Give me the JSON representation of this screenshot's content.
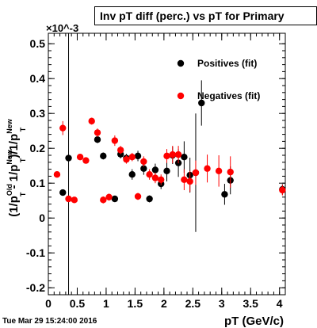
{
  "title": "Inv pT diff (perc.) vs pT for Primary",
  "timestamp": "Tue Mar 29 15:24:00 2016",
  "chart_data": {
    "type": "scatter",
    "xlabel": "pT (GeV/c)",
    "ylabel": "(1/p_T^Old - 1/p_T^New)/1/p_T^New",
    "y_multiplier": "×10^-3",
    "xlim": [
      0,
      4.1
    ],
    "ylim": [
      -0.22,
      0.53
    ],
    "x_ticks": [
      "0",
      "0.5",
      "1",
      "1.5",
      "2",
      "2.5",
      "3",
      "3.5",
      "4"
    ],
    "y_ticks": [
      "-0.2",
      "-0.1",
      "0",
      "0.1",
      "0.2",
      "0.3",
      "0.4",
      "0.5"
    ],
    "legend_position": "top-right",
    "grid": false,
    "series": [
      {
        "name": "Positives (fit)",
        "color": "#000000",
        "points": [
          {
            "x": 0.25,
            "y": 0.073,
            "err": 0.008
          },
          {
            "x": 0.35,
            "y": 0.172,
            "err": 0.49
          },
          {
            "x": 0.85,
            "y": 0.225,
            "err": 0.01
          },
          {
            "x": 0.95,
            "y": 0.178,
            "err": 0.01
          },
          {
            "x": 1.15,
            "y": 0.055,
            "err": 0.008
          },
          {
            "x": 1.25,
            "y": 0.183,
            "err": 0.012
          },
          {
            "x": 1.35,
            "y": 0.172,
            "err": 0.012
          },
          {
            "x": 1.45,
            "y": 0.125,
            "err": 0.015
          },
          {
            "x": 1.55,
            "y": 0.178,
            "err": 0.015
          },
          {
            "x": 1.65,
            "y": 0.142,
            "err": 0.018
          },
          {
            "x": 1.75,
            "y": 0.055,
            "err": 0.01
          },
          {
            "x": 1.85,
            "y": 0.138,
            "err": 0.018
          },
          {
            "x": 1.95,
            "y": 0.098,
            "err": 0.015
          },
          {
            "x": 2.05,
            "y": 0.135,
            "err": 0.03
          },
          {
            "x": 2.15,
            "y": 0.18,
            "err": 0.025
          },
          {
            "x": 2.25,
            "y": 0.158,
            "err": 0.04
          },
          {
            "x": 2.35,
            "y": 0.175,
            "err": 0.045
          },
          {
            "x": 2.45,
            "y": 0.123,
            "err": 0.05
          },
          {
            "x": 2.55,
            "y": 0.13,
            "err": 0.17
          },
          {
            "x": 2.65,
            "y": 0.33,
            "err": 0.065
          },
          {
            "x": 3.05,
            "y": 0.068,
            "err": 0.03
          },
          {
            "x": 3.15,
            "y": 0.108,
            "err": 0.04
          },
          {
            "x": 4.05,
            "y": 0.082,
            "err": 0.015
          }
        ]
      },
      {
        "name": "Negatives (fit)",
        "color": "#ff0000",
        "points": [
          {
            "x": 0.15,
            "y": 0.125,
            "err": 0.008
          },
          {
            "x": 0.25,
            "y": 0.258,
            "err": 0.02
          },
          {
            "x": 0.35,
            "y": 0.055,
            "err": 0.008
          },
          {
            "x": 0.45,
            "y": 0.052,
            "err": 0.008
          },
          {
            "x": 0.55,
            "y": 0.175,
            "err": 0.008
          },
          {
            "x": 0.65,
            "y": 0.165,
            "err": 0.008
          },
          {
            "x": 0.75,
            "y": 0.278,
            "err": 0.01
          },
          {
            "x": 0.85,
            "y": 0.245,
            "err": 0.012
          },
          {
            "x": 0.95,
            "y": 0.052,
            "err": 0.01
          },
          {
            "x": 1.05,
            "y": 0.06,
            "err": 0.01
          },
          {
            "x": 1.15,
            "y": 0.222,
            "err": 0.015
          },
          {
            "x": 1.25,
            "y": 0.195,
            "err": 0.012
          },
          {
            "x": 1.35,
            "y": 0.168,
            "err": 0.012
          },
          {
            "x": 1.45,
            "y": 0.175,
            "err": 0.012
          },
          {
            "x": 1.55,
            "y": 0.062,
            "err": 0.01
          },
          {
            "x": 1.65,
            "y": 0.162,
            "err": 0.015
          },
          {
            "x": 1.75,
            "y": 0.125,
            "err": 0.015
          },
          {
            "x": 1.85,
            "y": 0.115,
            "err": 0.015
          },
          {
            "x": 1.95,
            "y": 0.11,
            "err": 0.015
          },
          {
            "x": 2.05,
            "y": 0.178,
            "err": 0.02
          },
          {
            "x": 2.15,
            "y": 0.182,
            "err": 0.025
          },
          {
            "x": 2.25,
            "y": 0.182,
            "err": 0.025
          },
          {
            "x": 2.35,
            "y": 0.11,
            "err": 0.03
          },
          {
            "x": 2.45,
            "y": 0.105,
            "err": 0.03
          },
          {
            "x": 2.55,
            "y": 0.13,
            "err": 0.035
          },
          {
            "x": 2.75,
            "y": 0.142,
            "err": 0.04
          },
          {
            "x": 2.95,
            "y": 0.135,
            "err": 0.045
          },
          {
            "x": 3.15,
            "y": 0.132,
            "err": 0.045
          },
          {
            "x": 4.05,
            "y": 0.08,
            "err": 0.015
          }
        ]
      }
    ]
  }
}
